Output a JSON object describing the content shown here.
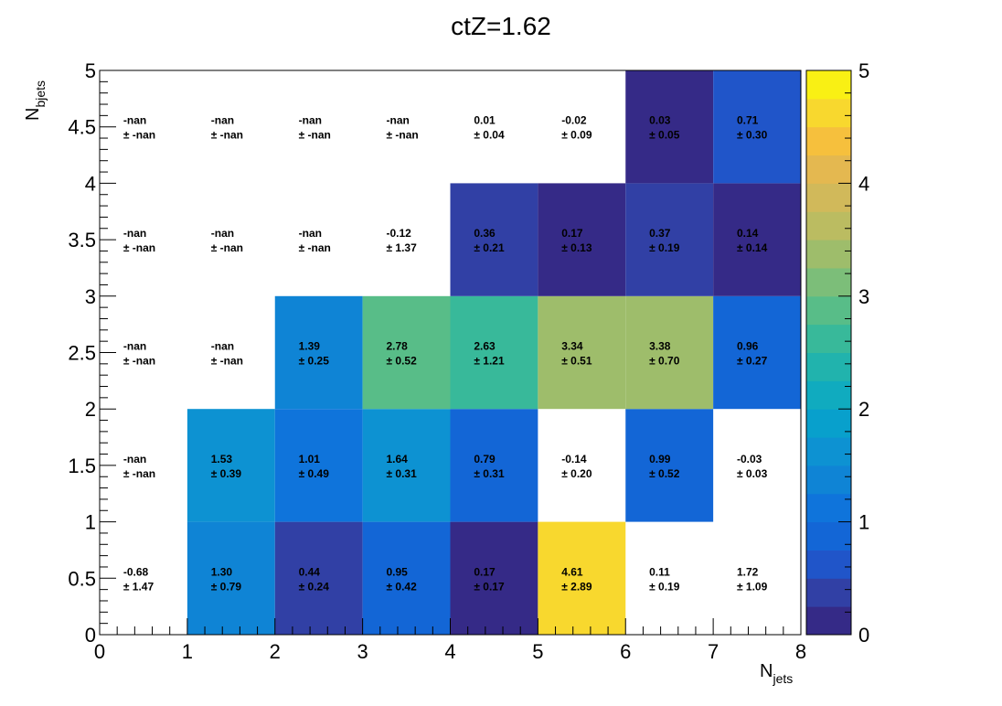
{
  "chart_data": {
    "type": "heatmap",
    "title": "ctZ=1.62",
    "xlabel": "N",
    "xlabel_sub": "jets",
    "ylabel": "N",
    "ylabel_sub": "bjets",
    "xlim": [
      0,
      8
    ],
    "ylim": [
      0,
      5
    ],
    "zlim": [
      0,
      5
    ],
    "x_bin_edges": [
      0,
      1,
      2,
      3,
      4,
      5,
      6,
      7,
      8
    ],
    "y_bin_edges": [
      0,
      1,
      2,
      3,
      4,
      5
    ],
    "x_ticks": [
      "0",
      "1",
      "2",
      "3",
      "4",
      "5",
      "6",
      "7",
      "8"
    ],
    "y_ticks": [
      "0",
      "0.5",
      "1",
      "1.5",
      "2",
      "2.5",
      "3",
      "3.5",
      "4",
      "4.5",
      "5"
    ],
    "z_ticks": [
      "0",
      "1",
      "2",
      "3",
      "4",
      "5"
    ],
    "palette": [
      "#352a87",
      "#3140a5",
      "#2055c9",
      "#1366d6",
      "#0f74db",
      "#0f84d5",
      "#0d92d2",
      "#08a0cc",
      "#10abbf",
      "#21b3ad",
      "#38b99a",
      "#58bd88",
      "#7cbe79",
      "#9ebd6b",
      "#bbbc61",
      "#d1b95a",
      "#e4b850",
      "#f6c03d",
      "#f8d82e",
      "#f9f014"
    ],
    "cells": [
      [
        {
          "v": "-0.68",
          "e": "± 1.47",
          "z": -0.68
        },
        {
          "v": "1.30",
          "e": "± 0.79",
          "z": 1.3
        },
        {
          "v": "0.44",
          "e": "± 0.24",
          "z": 0.44
        },
        {
          "v": "0.95",
          "e": "± 0.42",
          "z": 0.95
        },
        {
          "v": "0.17",
          "e": "± 0.17",
          "z": 0.17
        },
        {
          "v": "4.61",
          "e": "± 2.89",
          "z": 4.61
        },
        {
          "v": "0.11",
          "e": "± 0.19",
          "z": 0.11,
          "empty": true
        },
        {
          "v": "1.72",
          "e": "± 1.09",
          "z": 1.72,
          "empty": true
        }
      ],
      [
        {
          "v": "-nan",
          "e": "± -nan",
          "z": null
        },
        {
          "v": "1.53",
          "e": "± 0.39",
          "z": 1.53
        },
        {
          "v": "1.01",
          "e": "± 0.49",
          "z": 1.01
        },
        {
          "v": "1.64",
          "e": "± 0.31",
          "z": 1.64
        },
        {
          "v": "0.79",
          "e": "± 0.31",
          "z": 0.79
        },
        {
          "v": "-0.14",
          "e": "± 0.20",
          "z": -0.14
        },
        {
          "v": "0.99",
          "e": "± 0.52",
          "z": 0.99
        },
        {
          "v": "-0.03",
          "e": "± 0.03",
          "z": -0.03
        }
      ],
      [
        {
          "v": "-nan",
          "e": "± -nan",
          "z": null
        },
        {
          "v": "-nan",
          "e": "± -nan",
          "z": null
        },
        {
          "v": "1.39",
          "e": "± 0.25",
          "z": 1.39
        },
        {
          "v": "2.78",
          "e": "± 0.52",
          "z": 2.78
        },
        {
          "v": "2.63",
          "e": "± 1.21",
          "z": 2.63
        },
        {
          "v": "3.34",
          "e": "± 0.51",
          "z": 3.34
        },
        {
          "v": "3.38",
          "e": "± 0.70",
          "z": 3.38
        },
        {
          "v": "0.96",
          "e": "± 0.27",
          "z": 0.96
        }
      ],
      [
        {
          "v": "-nan",
          "e": "± -nan",
          "z": null
        },
        {
          "v": "-nan",
          "e": "± -nan",
          "z": null
        },
        {
          "v": "-nan",
          "e": "± -nan",
          "z": null
        },
        {
          "v": "-0.12",
          "e": "± 1.37",
          "z": -0.12
        },
        {
          "v": "0.36",
          "e": "± 0.21",
          "z": 0.36
        },
        {
          "v": "0.17",
          "e": "± 0.13",
          "z": 0.17
        },
        {
          "v": "0.37",
          "e": "± 0.19",
          "z": 0.37
        },
        {
          "v": "0.14",
          "e": "± 0.14",
          "z": 0.14
        }
      ],
      [
        {
          "v": "-nan",
          "e": "± -nan",
          "z": null
        },
        {
          "v": "-nan",
          "e": "± -nan",
          "z": null
        },
        {
          "v": "-nan",
          "e": "± -nan",
          "z": null
        },
        {
          "v": "-nan",
          "e": "± -nan",
          "z": null
        },
        {
          "v": "0.01",
          "e": "± 0.04",
          "z": 0.01,
          "empty": true
        },
        {
          "v": "-0.02",
          "e": "± 0.09",
          "z": -0.02,
          "empty": true
        },
        {
          "v": "0.03",
          "e": "± 0.05",
          "z": 0.03
        },
        {
          "v": "0.71",
          "e": "± 0.30",
          "z": 0.71
        }
      ]
    ],
    "grid": false,
    "legend": "colorbar-right"
  }
}
